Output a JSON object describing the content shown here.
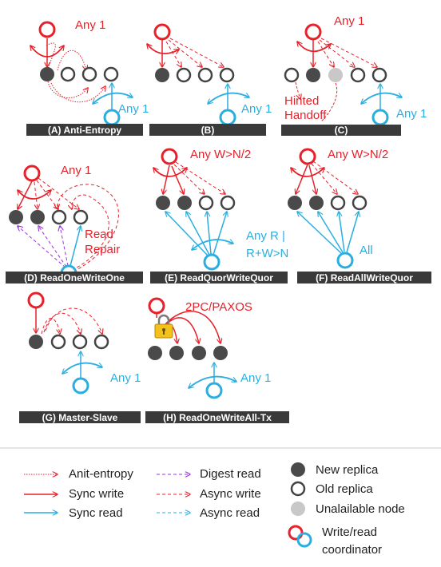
{
  "panels": [
    {
      "caption": "(A) Anti-Entropy",
      "write_label": "Any 1",
      "read_label": "Any 1"
    },
    {
      "caption": "(B)",
      "read_label": "Any 1"
    },
    {
      "caption": "(C)",
      "write_label": "Any 1",
      "read_label": "Any 1",
      "note_line1": "Hinted",
      "note_line2": "Handoff"
    },
    {
      "caption": "(D) ReadOneWriteOne",
      "write_label": "Any 1",
      "note_line1": "Read",
      "note_line2": "Repair"
    },
    {
      "caption": "(E) ReadQuorWriteQuor",
      "write_label": "Any W>N/2",
      "read_line1": "Any R  |",
      "read_line2": "R+W>N"
    },
    {
      "caption": "(F) ReadAllWriteQuor",
      "write_label": "Any W>N/2",
      "read_label": "All"
    },
    {
      "caption": "(G) Master-Slave",
      "read_label": "Any 1"
    },
    {
      "caption": "(H) ReadOneWriteAll-Tx",
      "write_label": "2PC/PAXOS",
      "read_label": "Any 1"
    }
  ],
  "legend": {
    "col1": [
      "Anit-entropy",
      "Sync write",
      "Sync read"
    ],
    "col2": [
      "Digest read",
      "Async write",
      "Async read"
    ],
    "col3": [
      "New replica",
      "Old replica",
      "Unalailable node"
    ],
    "coordinator_line1": "Write/read",
    "coordinator_line2": "coordinator"
  },
  "colors": {
    "write": "#e8202a",
    "read": "#2aaee0",
    "digest": "#9b30e0",
    "new_replica": "#4a4a4a",
    "unavailable": "#c8c8c8",
    "caption_bar": "#3a3a3a"
  },
  "icons": [
    "lock-icon"
  ]
}
